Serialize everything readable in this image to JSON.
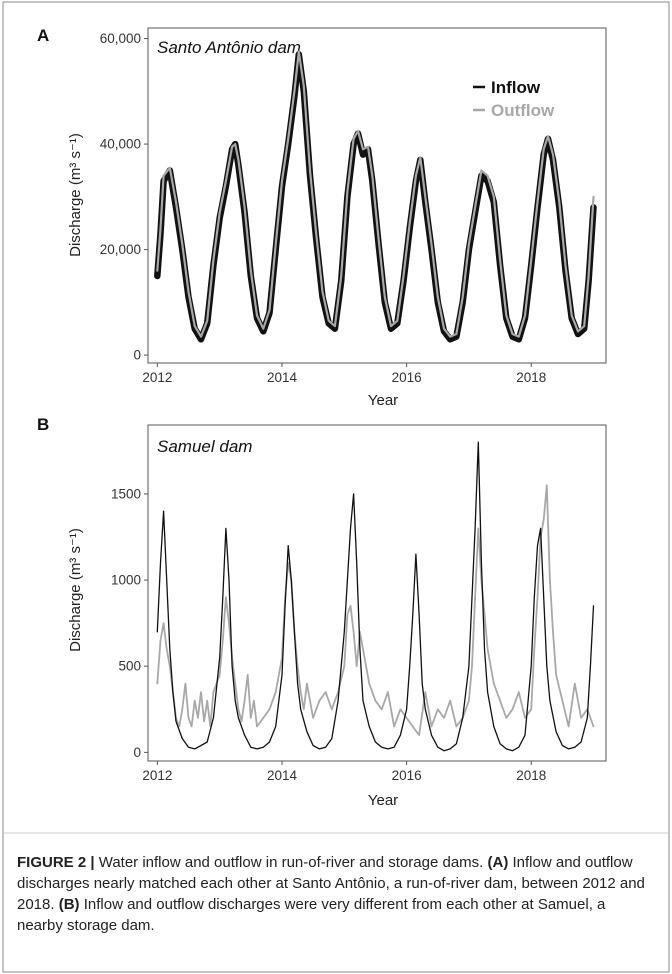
{
  "caption": {
    "label": "FIGURE 2 |",
    "text": " Water inflow and outflow in run-of-river and storage dams. ",
    "panel_a_label": "(A)",
    "panel_a_text": " Inflow and outflow discharges nearly matched each other at Santo Antônio, a run-of-river dam, between 2012 and 2018. ",
    "panel_b_label": "(B)",
    "panel_b_text": " Inflow and outflow discharges were very different from each other at Samuel, a nearby storage dam."
  },
  "colors": {
    "inflow": "#111111",
    "outflow": "#a8a8a8",
    "axis": "#555555"
  },
  "chart_data": [
    {
      "panel": "A",
      "type": "line",
      "title": "Santo Antônio dam",
      "xlabel": "Year",
      "ylabel": "Discharge (m³ s⁻¹)",
      "xlim": [
        2011.85,
        2019.2
      ],
      "ylim": [
        -1500,
        62000
      ],
      "x_ticks": [
        2012,
        2014,
        2016,
        2018
      ],
      "y_ticks": [
        0,
        20000,
        40000,
        60000
      ],
      "y_tick_labels": [
        "0",
        "20,000",
        "40,000",
        "60,000"
      ],
      "legend": {
        "position": "top-right",
        "entries": [
          "Inflow",
          "Outflow"
        ]
      },
      "series": [
        {
          "name": "Inflow",
          "x": [
            2012.0,
            2012.05,
            2012.1,
            2012.2,
            2012.3,
            2012.4,
            2012.5,
            2012.6,
            2012.7,
            2012.8,
            2012.9,
            2013.0,
            2013.1,
            2013.2,
            2013.25,
            2013.3,
            2013.4,
            2013.5,
            2013.6,
            2013.7,
            2013.8,
            2013.9,
            2014.0,
            2014.1,
            2014.2,
            2014.27,
            2014.35,
            2014.45,
            2014.55,
            2014.65,
            2014.75,
            2014.85,
            2014.95,
            2015.05,
            2015.15,
            2015.22,
            2015.3,
            2015.38,
            2015.45,
            2015.55,
            2015.65,
            2015.75,
            2015.85,
            2015.95,
            2016.05,
            2016.15,
            2016.22,
            2016.3,
            2016.4,
            2016.5,
            2016.6,
            2016.7,
            2016.8,
            2016.9,
            2017.0,
            2017.1,
            2017.2,
            2017.3,
            2017.4,
            2017.5,
            2017.6,
            2017.7,
            2017.8,
            2017.9,
            2018.0,
            2018.1,
            2018.2,
            2018.27,
            2018.35,
            2018.45,
            2018.55,
            2018.65,
            2018.75,
            2018.85,
            2018.92,
            2019.0
          ],
          "values": [
            15000,
            23000,
            33000,
            35000,
            28000,
            20000,
            11000,
            5000,
            3000,
            6000,
            17000,
            26000,
            32000,
            39000,
            40000,
            36000,
            27000,
            15000,
            7000,
            4500,
            8000,
            20000,
            32000,
            40000,
            49000,
            57000,
            50000,
            34000,
            22000,
            11000,
            6000,
            5000,
            14000,
            30000,
            40000,
            42000,
            38000,
            39000,
            33000,
            21000,
            10000,
            5000,
            6000,
            14000,
            24000,
            33000,
            37000,
            29000,
            20000,
            10000,
            4500,
            3000,
            3500,
            10000,
            20000,
            27000,
            34000,
            33000,
            29000,
            17000,
            7000,
            3500,
            3000,
            7000,
            17000,
            28000,
            38000,
            41000,
            37000,
            28000,
            16000,
            7000,
            4000,
            5000,
            14000,
            28000
          ]
        },
        {
          "name": "Outflow",
          "x": [
            2012.0,
            2012.05,
            2012.1,
            2012.2,
            2012.3,
            2012.4,
            2012.5,
            2012.6,
            2012.7,
            2012.8,
            2012.9,
            2013.0,
            2013.1,
            2013.2,
            2013.25,
            2013.3,
            2013.4,
            2013.5,
            2013.6,
            2013.7,
            2013.8,
            2013.9,
            2014.0,
            2014.1,
            2014.2,
            2014.27,
            2014.35,
            2014.45,
            2014.55,
            2014.65,
            2014.75,
            2014.85,
            2014.95,
            2015.05,
            2015.15,
            2015.22,
            2015.3,
            2015.38,
            2015.45,
            2015.55,
            2015.65,
            2015.75,
            2015.85,
            2015.95,
            2016.05,
            2016.15,
            2016.22,
            2016.3,
            2016.4,
            2016.5,
            2016.6,
            2016.7,
            2016.8,
            2016.9,
            2017.0,
            2017.1,
            2017.2,
            2017.3,
            2017.4,
            2017.5,
            2017.6,
            2017.7,
            2017.8,
            2017.9,
            2018.0,
            2018.1,
            2018.2,
            2018.27,
            2018.35,
            2018.45,
            2018.55,
            2018.65,
            2018.75,
            2018.85,
            2018.92,
            2019.0
          ],
          "values": [
            16000,
            24000,
            34000,
            35500,
            29000,
            21000,
            12000,
            5500,
            3500,
            6500,
            18000,
            27000,
            33000,
            39500,
            40000,
            37000,
            28000,
            16000,
            7500,
            5000,
            8500,
            21000,
            33000,
            41000,
            50000,
            57500,
            51000,
            35000,
            23000,
            12000,
            6500,
            5500,
            15000,
            31000,
            41000,
            42500,
            39000,
            39500,
            34000,
            22000,
            11000,
            5500,
            6500,
            15000,
            25000,
            34000,
            37500,
            30000,
            21000,
            11000,
            5000,
            3500,
            4000,
            11000,
            21000,
            28000,
            35000,
            34000,
            30000,
            18000,
            7500,
            4000,
            3500,
            7500,
            18000,
            29000,
            39000,
            41500,
            38000,
            29000,
            17000,
            7500,
            4500,
            5500,
            15000,
            30000
          ]
        }
      ]
    },
    {
      "panel": "B",
      "type": "line",
      "title": "Samuel dam",
      "xlabel": "Year",
      "ylabel": "Discharge (m³ s⁻¹)",
      "xlim": [
        2011.85,
        2019.2
      ],
      "ylim": [
        -50,
        1900
      ],
      "x_ticks": [
        2012,
        2014,
        2016,
        2018
      ],
      "y_ticks": [
        0,
        500,
        1000,
        1500
      ],
      "y_tick_labels": [
        "0",
        "500",
        "1000",
        "1500"
      ],
      "series": [
        {
          "name": "Inflow",
          "x": [
            2012.0,
            2012.05,
            2012.1,
            2012.15,
            2012.2,
            2012.25,
            2012.3,
            2012.4,
            2012.5,
            2012.6,
            2012.7,
            2012.8,
            2012.9,
            2013.0,
            2013.05,
            2013.1,
            2013.15,
            2013.2,
            2013.25,
            2013.3,
            2013.4,
            2013.5,
            2013.6,
            2013.7,
            2013.8,
            2013.9,
            2014.0,
            2014.05,
            2014.1,
            2014.15,
            2014.2,
            2014.25,
            2014.3,
            2014.4,
            2014.5,
            2014.6,
            2014.7,
            2014.8,
            2014.9,
            2015.0,
            2015.05,
            2015.1,
            2015.15,
            2015.2,
            2015.25,
            2015.3,
            2015.4,
            2015.5,
            2015.6,
            2015.7,
            2015.8,
            2015.9,
            2016.0,
            2016.05,
            2016.1,
            2016.15,
            2016.2,
            2016.25,
            2016.3,
            2016.4,
            2016.5,
            2016.6,
            2016.7,
            2016.8,
            2016.9,
            2017.0,
            2017.05,
            2017.1,
            2017.15,
            2017.2,
            2017.25,
            2017.3,
            2017.4,
            2017.5,
            2017.6,
            2017.7,
            2017.8,
            2017.9,
            2018.0,
            2018.05,
            2018.1,
            2018.15,
            2018.2,
            2018.25,
            2018.3,
            2018.4,
            2018.5,
            2018.6,
            2018.7,
            2018.8,
            2018.9,
            2018.95,
            2019.0
          ],
          "values": [
            700,
            1100,
            1400,
            1000,
            600,
            350,
            180,
            80,
            30,
            20,
            40,
            60,
            200,
            550,
            900,
            1300,
            1000,
            500,
            300,
            200,
            100,
            30,
            20,
            30,
            60,
            150,
            450,
            850,
            1200,
            1000,
            700,
            400,
            250,
            120,
            40,
            20,
            30,
            80,
            300,
            700,
            1000,
            1300,
            1500,
            1100,
            600,
            300,
            150,
            60,
            30,
            20,
            30,
            100,
            250,
            500,
            800,
            1150,
            800,
            400,
            250,
            100,
            30,
            10,
            20,
            50,
            200,
            500,
            900,
            1300,
            1800,
            1100,
            600,
            350,
            150,
            50,
            20,
            10,
            30,
            100,
            500,
            900,
            1200,
            1300,
            900,
            500,
            300,
            120,
            40,
            20,
            30,
            60,
            200,
            500,
            850
          ]
        },
        {
          "name": "Outflow",
          "x": [
            2012.0,
            2012.05,
            2012.1,
            2012.15,
            2012.2,
            2012.25,
            2012.3,
            2012.35,
            2012.4,
            2012.45,
            2012.5,
            2012.55,
            2012.6,
            2012.65,
            2012.7,
            2012.75,
            2012.8,
            2012.85,
            2012.9,
            2013.0,
            2013.05,
            2013.1,
            2013.15,
            2013.2,
            2013.25,
            2013.3,
            2013.35,
            2013.4,
            2013.45,
            2013.5,
            2013.55,
            2013.6,
            2013.7,
            2013.8,
            2013.9,
            2014.0,
            2014.05,
            2014.1,
            2014.15,
            2014.2,
            2014.25,
            2014.3,
            2014.35,
            2014.4,
            2014.5,
            2014.6,
            2014.7,
            2014.8,
            2014.9,
            2015.0,
            2015.05,
            2015.1,
            2015.15,
            2015.2,
            2015.25,
            2015.3,
            2015.4,
            2015.5,
            2015.6,
            2015.7,
            2015.8,
            2015.9,
            2016.0,
            2016.1,
            2016.2,
            2016.3,
            2016.4,
            2016.5,
            2016.6,
            2016.7,
            2016.8,
            2016.9,
            2017.0,
            2017.05,
            2017.1,
            2017.15,
            2017.2,
            2017.25,
            2017.3,
            2017.4,
            2017.5,
            2017.6,
            2017.7,
            2017.8,
            2017.9,
            2018.0,
            2018.05,
            2018.1,
            2018.15,
            2018.2,
            2018.25,
            2018.3,
            2018.35,
            2018.4,
            2018.5,
            2018.6,
            2018.7,
            2018.8,
            2018.9,
            2019.0
          ],
          "values": [
            400,
            650,
            750,
            600,
            500,
            350,
            200,
            150,
            250,
            400,
            200,
            150,
            300,
            200,
            350,
            180,
            300,
            150,
            350,
            450,
            650,
            900,
            750,
            550,
            400,
            250,
            180,
            300,
            450,
            200,
            300,
            150,
            200,
            250,
            350,
            550,
            900,
            1100,
            1000,
            700,
            500,
            350,
            250,
            400,
            200,
            300,
            350,
            250,
            350,
            500,
            800,
            850,
            700,
            500,
            700,
            600,
            400,
            300,
            250,
            350,
            150,
            250,
            200,
            150,
            100,
            350,
            150,
            250,
            200,
            300,
            150,
            200,
            300,
            500,
            900,
            1300,
            1000,
            800,
            600,
            400,
            300,
            200,
            250,
            350,
            200,
            250,
            600,
            900,
            1250,
            1350,
            1550,
            1000,
            700,
            450,
            300,
            150,
            400,
            200,
            250,
            150
          ]
        }
      ]
    }
  ]
}
